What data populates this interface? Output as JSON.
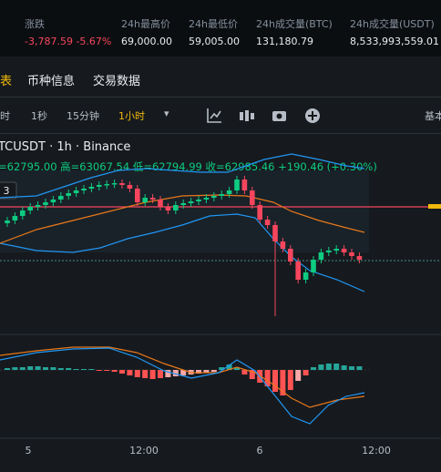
{
  "stats": [
    {
      "label": "涨跌",
      "value": "-3,787.59 -5.67%"
    },
    {
      "label": "24h最高价",
      "value": "69,000.00"
    },
    {
      "label": "24h最低价",
      "value": "59,005.00"
    },
    {
      "label": "24h成交量(BTC)",
      "value": "131,180.79"
    },
    {
      "label": "24h成交量(USDT)",
      "value": "8,533,993,559.01"
    }
  ],
  "tabs": [
    "表",
    "币种信息",
    "交易数据"
  ],
  "toolbar": {
    "intervals": [
      "时",
      "1秒",
      "15分钟",
      "1小时"
    ],
    "dropdown": "▾",
    "right": "基本"
  },
  "chart": {
    "symbol": "TCUSDT · 1h · Binance",
    "ohlc": "=62795.00 高=63067.54 低=62794.99 收=62985.46 +190.46 (+0.30%)",
    "badge": "3",
    "x_labels": [
      "5",
      "12:00",
      "6",
      "12:00"
    ]
  }
}
